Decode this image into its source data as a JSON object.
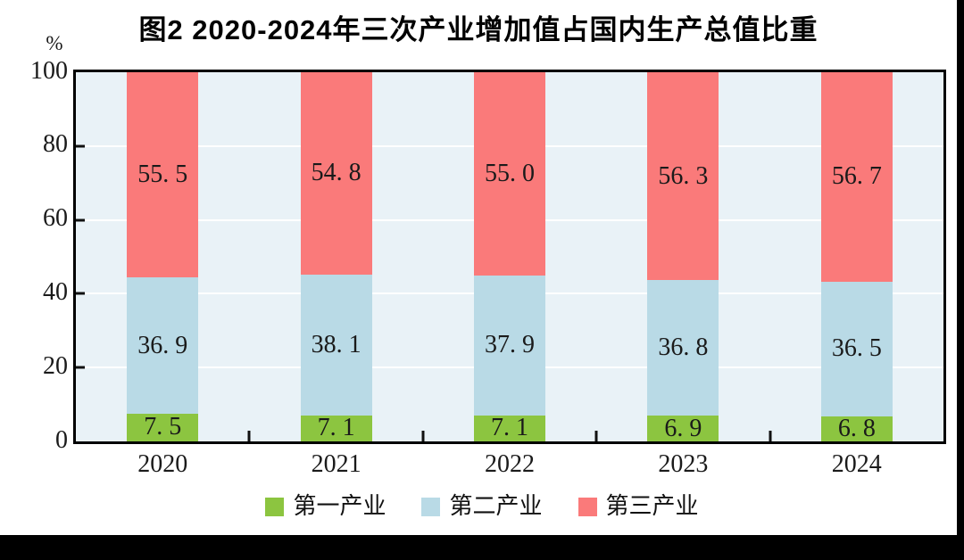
{
  "title": "图2  2020-2024年三次产业增加值占国内生产总值比重",
  "y_axis": {
    "unit": "%",
    "ticks": [
      {
        "label": "100",
        "value": 100
      },
      {
        "label": "80",
        "value": 80
      },
      {
        "label": "60",
        "value": 60
      },
      {
        "label": "40",
        "value": 40
      },
      {
        "label": "20",
        "value": 20
      },
      {
        "label": "0",
        "value": 0
      }
    ]
  },
  "x_axis": {
    "categories": [
      "2020",
      "2021",
      "2022",
      "2023",
      "2024"
    ]
  },
  "legend": {
    "items": [
      {
        "label": "第一产业",
        "color": "#8CC540"
      },
      {
        "label": "第二产业",
        "color": "#B9DAE6"
      },
      {
        "label": "第三产业",
        "color": "#FA7A7A"
      }
    ]
  },
  "chart_data": {
    "type": "bar",
    "stacked": true,
    "title": "图2  2020-2024年三次产业增加值占国内生产总值比重",
    "categories": [
      "2020",
      "2021",
      "2022",
      "2023",
      "2024"
    ],
    "series": [
      {
        "name": "第一产业",
        "color": "#8CC540",
        "values": [
          7.5,
          7.1,
          7.1,
          6.9,
          6.8
        ],
        "labels": [
          "7. 5",
          "7. 1",
          "7. 1",
          "6. 9",
          "6. 8"
        ]
      },
      {
        "name": "第二产业",
        "color": "#B9DAE6",
        "values": [
          36.9,
          38.1,
          37.9,
          36.8,
          36.5
        ],
        "labels": [
          "36. 9",
          "38. 1",
          "37. 9",
          "36. 8",
          "36. 5"
        ]
      },
      {
        "name": "第三产业",
        "color": "#FA7A7A",
        "values": [
          55.5,
          54.8,
          55.0,
          56.3,
          56.7
        ],
        "labels": [
          "55. 5",
          "54. 8",
          "55. 0",
          "56. 3",
          "56. 7"
        ]
      }
    ],
    "ylim": [
      0,
      100
    ],
    "ylabel": "%",
    "gridlines": [
      20,
      40,
      60,
      80
    ],
    "grid": true,
    "legend_position": "bottom"
  },
  "colors": {
    "plot_background": "#E9F2F7",
    "gridline": "#FFFFFF",
    "frame": "#000000",
    "letterbox": "#000000",
    "label_text": "#1A1A1A"
  }
}
